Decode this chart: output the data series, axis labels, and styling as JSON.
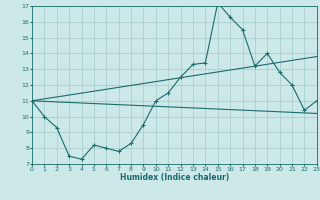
{
  "xlabel": "Humidex (Indice chaleur)",
  "bg_color": "#cce8e8",
  "grid_color": "#aacfcf",
  "line_color": "#1a6b6b",
  "xlim": [
    0,
    23
  ],
  "ylim": [
    7,
    17
  ],
  "xticks": [
    0,
    1,
    2,
    3,
    4,
    5,
    6,
    7,
    8,
    9,
    10,
    11,
    12,
    13,
    14,
    15,
    16,
    17,
    18,
    19,
    20,
    21,
    22,
    23
  ],
  "yticks": [
    7,
    8,
    9,
    10,
    11,
    12,
    13,
    14,
    15,
    16,
    17
  ],
  "curve_x": [
    0,
    1,
    2,
    3,
    4,
    5,
    6,
    7,
    8,
    9,
    10,
    11,
    12,
    13,
    14,
    15,
    16,
    17,
    18,
    19,
    20,
    21,
    22,
    23
  ],
  "curve_y": [
    11,
    10,
    9.3,
    7.5,
    7.3,
    8.2,
    8.0,
    7.8,
    8.3,
    9.5,
    11.0,
    11.5,
    12.5,
    13.3,
    13.4,
    17.2,
    16.3,
    15.5,
    13.2,
    14.0,
    12.8,
    12.0,
    10.4,
    11.0
  ],
  "line2_x": [
    0,
    23
  ],
  "line2_y": [
    11,
    13.8
  ],
  "line3_x": [
    0,
    23
  ],
  "line3_y": [
    11,
    10.2
  ]
}
